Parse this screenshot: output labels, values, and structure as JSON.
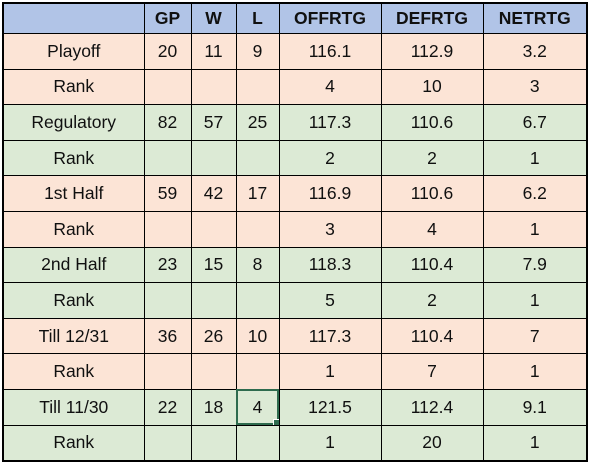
{
  "colors": {
    "header_bg": "#b1c4e7",
    "peach_row_bg": "#fce4d6",
    "green_row_bg": "#dcead5",
    "grid_border": "#000000",
    "red_text": "#cc1d1d",
    "selection_border": "#2e6b4e"
  },
  "table": {
    "columns": [
      "",
      "GP",
      "W",
      "L",
      "OFFRTG",
      "DEFRTG",
      "NETRTG"
    ],
    "rows": [
      {
        "label": "Playoff",
        "values": [
          "20",
          "11",
          "9",
          "116.1",
          "112.9",
          "3.2"
        ],
        "bg": "peach"
      },
      {
        "label": "Rank",
        "values": [
          "",
          "",
          "",
          "4",
          "10",
          "3"
        ],
        "bg": "peach"
      },
      {
        "label": "Regulatory",
        "values": [
          "82",
          "57",
          "25",
          "117.3",
          "110.6",
          "6.7"
        ],
        "bg": "green"
      },
      {
        "label": "Rank",
        "values": [
          "",
          "",
          "",
          "2",
          "2",
          "1"
        ],
        "bg": "green"
      },
      {
        "label": "1st Half",
        "values": [
          "59",
          "42",
          "17",
          "116.9",
          "110.6",
          "6.2"
        ],
        "bg": "peach"
      },
      {
        "label": "Rank",
        "values": [
          "",
          "",
          "",
          "3",
          "4",
          "1"
        ],
        "bg": "peach"
      },
      {
        "label": "2nd Half",
        "values": [
          "23",
          "15",
          "8",
          "118.3",
          "110.4",
          "7.9"
        ],
        "bg": "green"
      },
      {
        "label": "Rank",
        "values": [
          "",
          "",
          "",
          "5",
          "2",
          "1"
        ],
        "bg": "green"
      },
      {
        "label": "Till 12/31",
        "values": [
          "36",
          "26",
          "10",
          "117.3",
          "110.4",
          "7"
        ],
        "bg": "peach"
      },
      {
        "label": "Rank",
        "values": [
          "",
          "",
          "",
          "1",
          "7",
          "1"
        ],
        "bg": "peach"
      },
      {
        "label": "Till 11/30",
        "values": [
          "22",
          "18",
          "4",
          "121.5",
          "112.4",
          "9.1"
        ],
        "bg": "green",
        "red_value_indices": [
          2,
          3,
          5
        ],
        "selected_value_index": 2
      },
      {
        "label": "Rank",
        "values": [
          "",
          "",
          "",
          "1",
          "20",
          "1"
        ],
        "bg": "green"
      }
    ]
  }
}
